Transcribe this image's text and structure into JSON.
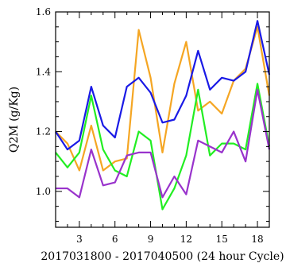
{
  "chart_data": {
    "type": "line",
    "title": "",
    "xlabel": "2017031800 - 2017040500 (24 hour Cycle)",
    "ylabel": "Q2M (g/Kg)",
    "xlim": [
      1,
      19
    ],
    "ylim": [
      0.88,
      1.6
    ],
    "x_ticks": [
      3,
      6,
      9,
      12,
      15,
      18
    ],
    "y_ticks": [
      1.0,
      1.2,
      1.4,
      1.6
    ],
    "y_tick_labels": [
      "1.0",
      "1.2",
      "1.4",
      "1.6"
    ],
    "grid": false,
    "legend": "none",
    "x": [
      1,
      2,
      3,
      4,
      5,
      6,
      7,
      8,
      9,
      10,
      11,
      12,
      13,
      14,
      15,
      16,
      17,
      18,
      19
    ],
    "series": [
      {
        "color": "#f5a623",
        "values": [
          1.2,
          1.16,
          1.07,
          1.22,
          1.07,
          1.1,
          1.11,
          1.54,
          1.38,
          1.13,
          1.36,
          1.5,
          1.27,
          1.3,
          1.26,
          1.37,
          1.41,
          1.55,
          1.32
        ]
      },
      {
        "color": "#1a1ae6",
        "values": [
          1.2,
          1.14,
          1.17,
          1.35,
          1.22,
          1.18,
          1.35,
          1.38,
          1.33,
          1.23,
          1.24,
          1.32,
          1.47,
          1.34,
          1.38,
          1.37,
          1.4,
          1.57,
          1.39
        ]
      },
      {
        "color": "#22ee22",
        "values": [
          1.13,
          1.08,
          1.13,
          1.32,
          1.14,
          1.07,
          1.05,
          1.2,
          1.17,
          0.94,
          1.01,
          1.12,
          1.34,
          1.12,
          1.16,
          1.16,
          1.14,
          1.36,
          1.15
        ]
      },
      {
        "color": "#9933cc",
        "values": [
          1.01,
          1.01,
          0.98,
          1.14,
          1.02,
          1.03,
          1.12,
          1.13,
          1.13,
          0.98,
          1.05,
          0.99,
          1.17,
          1.15,
          1.13,
          1.2,
          1.1,
          1.34,
          1.14
        ]
      }
    ]
  }
}
